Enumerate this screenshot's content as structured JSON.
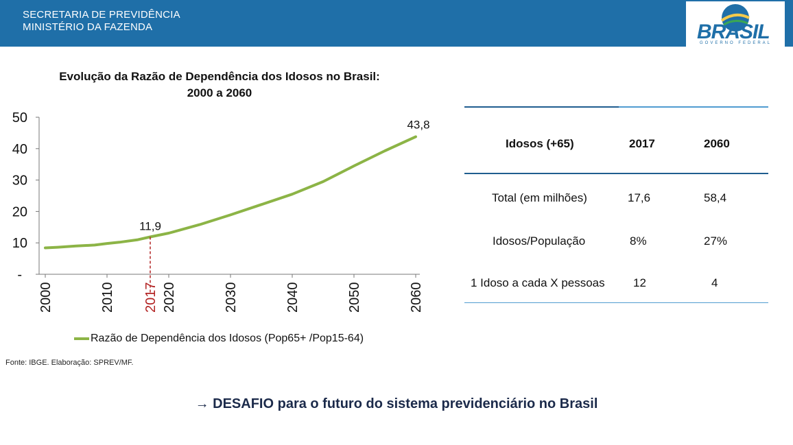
{
  "header": {
    "org_line1": "SECRETARIA DE PREVIDÊNCIA",
    "org_line2": "MINISTÉRIO DA FAZENDA",
    "logo_text": "BRASIL",
    "logo_subtext": "GOVERNO FEDERAL",
    "bg_color": "#1f6fa8"
  },
  "chart_data": {
    "type": "line",
    "title_line1": "Evolução da Razão de Dependência dos Idosos no Brasil:",
    "title_line2": "2000 a 2060",
    "x_ticks": [
      "2000",
      "2010",
      "2017",
      "2020",
      "2030",
      "2040",
      "2050",
      "2060"
    ],
    "highlight_tick": "2017",
    "y_ticks": [
      "50",
      "40",
      "30",
      "20",
      "10",
      "-"
    ],
    "ylim": [
      0,
      50
    ],
    "xlim": [
      2000,
      2060
    ],
    "grid": false,
    "series": [
      {
        "name": "Razão de Dependência dos Idosos (Pop65+ /Pop15-64)",
        "color": "#8cb446",
        "x": [
          2000,
          2002,
          2005,
          2008,
          2010,
          2012,
          2015,
          2017,
          2020,
          2025,
          2030,
          2035,
          2040,
          2045,
          2050,
          2055,
          2060
        ],
        "y": [
          8.4,
          8.6,
          9.0,
          9.3,
          9.8,
          10.2,
          11.0,
          11.9,
          13.1,
          15.8,
          18.9,
          22.2,
          25.5,
          29.5,
          34.5,
          39.3,
          43.8
        ]
      }
    ],
    "annotations": [
      {
        "x": 2017,
        "y": 11.9,
        "label": "11,9"
      },
      {
        "x": 2060,
        "y": 43.8,
        "label": "43,8"
      }
    ],
    "marker_color": "#b22222",
    "legend_label": "Razão de Dependência dos Idosos (Pop65+ /Pop15-64)"
  },
  "source": "Fonte: IBGE. Elaboração: SPREV/MF.",
  "table": {
    "headers": [
      "Idosos (+65)",
      "2017",
      "2060"
    ],
    "rows": [
      [
        "Total (em milhões)",
        "17,6",
        "58,4"
      ],
      [
        "Idosos/População",
        "8%",
        "27%"
      ],
      [
        "1 Idoso a cada X pessoas",
        "12",
        "4"
      ]
    ]
  },
  "footer": "→ DESAFIO para o futuro do sistema previdenciário no Brasil"
}
